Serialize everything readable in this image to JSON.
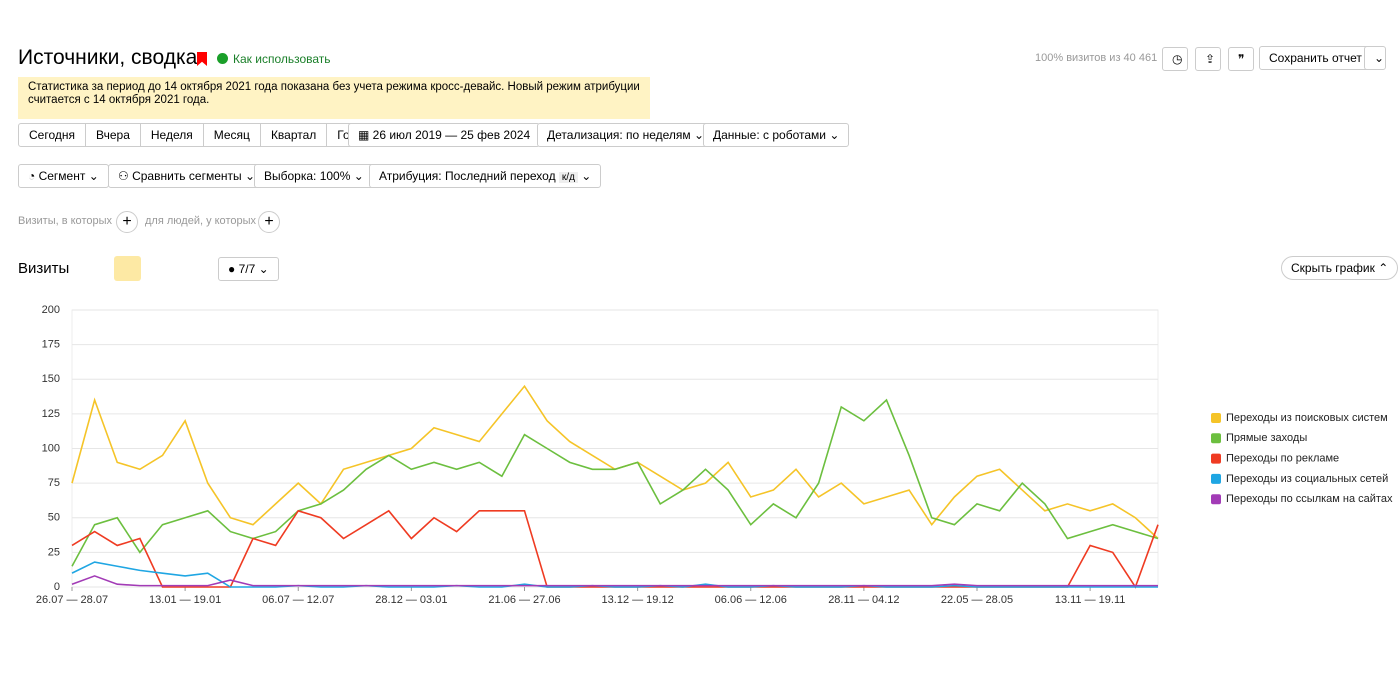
{
  "header": {
    "title": "Источники, сводка",
    "help": "Как использовать",
    "visits_info": "100% визитов из 40 461",
    "save": "Сохранить отчет"
  },
  "notice": "Статистика за период до 14 октября 2021 года показана без учета режима кросс-девайс. Новый режим атрибуции считается с 14 октября 2021 года.",
  "periods": [
    "Сегодня",
    "Вчера",
    "Неделя",
    "Месяц",
    "Квартал",
    "Год"
  ],
  "date_range": "26 июл 2019 — 25 фев 2024",
  "detail": "Детализация: по неделям",
  "robots": "Данные: с роботами",
  "filters": {
    "segment": "Сегмент",
    "compare": "Сравнить сегменты",
    "sample": "Выборка: 100%",
    "attribution": "Атрибуция: Последний переход",
    "attribution_tag": "к/д"
  },
  "conditions": {
    "visits": "Визиты, в которых",
    "people": "для людей, у которых"
  },
  "chart_header": {
    "title": "Визиты",
    "series_count": "7/7",
    "hide": "Скрыть график"
  },
  "chart_data": {
    "type": "line",
    "categories": [
      "26.07 — 28.07",
      null,
      null,
      null,
      null,
      "13.01 — 19.01",
      null,
      null,
      null,
      null,
      "06.07 — 12.07",
      null,
      null,
      null,
      null,
      "28.12 — 03.01",
      null,
      null,
      null,
      null,
      "21.06 — 27.06",
      null,
      null,
      null,
      null,
      "13.12 — 19.12",
      null,
      null,
      null,
      null,
      "06.06 — 12.06",
      null,
      null,
      null,
      null,
      "28.11 — 04.12",
      null,
      null,
      null,
      null,
      "22.05 — 28.05",
      null,
      null,
      null,
      null,
      "13.11 — 19.11",
      null,
      null,
      null
    ],
    "ylim": [
      0,
      200
    ],
    "yticks": [
      0,
      25,
      50,
      75,
      100,
      125,
      150,
      175,
      200
    ],
    "grid": true,
    "series": [
      {
        "name": "Переходы из поисковых систем",
        "color": "#f5c428",
        "values": [
          75,
          135,
          90,
          85,
          95,
          120,
          75,
          50,
          45,
          60,
          75,
          60,
          85,
          90,
          95,
          100,
          115,
          110,
          105,
          125,
          145,
          120,
          105,
          95,
          85,
          90,
          80,
          70,
          75,
          90,
          65,
          70,
          85,
          65,
          75,
          60,
          65,
          70,
          45,
          65,
          80,
          85,
          70,
          55,
          60,
          55,
          60,
          50,
          35
        ]
      },
      {
        "name": "Прямые заходы",
        "color": "#6cbf3f",
        "values": [
          15,
          45,
          50,
          25,
          45,
          50,
          55,
          40,
          35,
          40,
          55,
          60,
          70,
          85,
          95,
          85,
          90,
          85,
          90,
          80,
          110,
          100,
          90,
          85,
          85,
          90,
          60,
          70,
          85,
          70,
          45,
          60,
          50,
          75,
          130,
          120,
          135,
          95,
          50,
          45,
          60,
          55,
          75,
          60,
          35,
          40,
          45,
          40,
          35
        ]
      },
      {
        "name": "Переходы по рекламе",
        "color": "#ef3b22",
        "values": [
          30,
          40,
          30,
          35,
          0,
          0,
          0,
          0,
          35,
          30,
          55,
          50,
          35,
          45,
          55,
          35,
          50,
          40,
          55,
          55,
          55,
          0,
          0,
          0,
          0,
          0,
          0,
          0,
          0,
          0,
          0,
          0,
          0,
          0,
          0,
          0,
          0,
          0,
          0,
          0,
          0,
          0,
          0,
          0,
          0,
          30,
          25,
          0,
          45
        ]
      },
      {
        "name": "Переходы из социальных сетей",
        "color": "#1fa6e3",
        "values": [
          10,
          18,
          15,
          12,
          10,
          8,
          10,
          0,
          0,
          0,
          1,
          0,
          0,
          1,
          0,
          0,
          0,
          1,
          0,
          0,
          2,
          0,
          0,
          1,
          0,
          0,
          1,
          0,
          2,
          0,
          0,
          1,
          0,
          0,
          0,
          1,
          0,
          0,
          0,
          1,
          0,
          0,
          0,
          0,
          0,
          0,
          0,
          0,
          0
        ]
      },
      {
        "name": "Переходы по ссылкам на сайтах",
        "color": "#a23bb6",
        "values": [
          2,
          8,
          2,
          1,
          1,
          1,
          1,
          5,
          1,
          1,
          1,
          1,
          1,
          1,
          1,
          1,
          1,
          1,
          1,
          1,
          1,
          1,
          1,
          1,
          1,
          1,
          1,
          1,
          1,
          1,
          1,
          1,
          1,
          1,
          1,
          1,
          1,
          1,
          1,
          2,
          1,
          1,
          1,
          1,
          1,
          1,
          1,
          1,
          1
        ]
      }
    ]
  }
}
